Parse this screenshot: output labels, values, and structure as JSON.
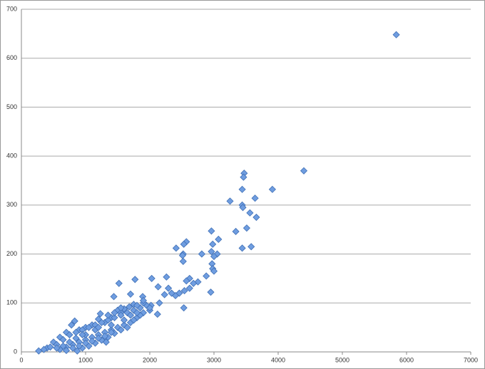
{
  "chart_data": {
    "type": "scatter",
    "color": "#6f9de0",
    "x": [
      5840,
      4400,
      3470,
      3460,
      3440,
      3910,
      3640,
      3250,
      3440,
      3450,
      3560,
      3660,
      3510,
      3340,
      3580,
      3440,
      2960,
      3070,
      2980,
      2410,
      2570,
      2530,
      2520,
      2510,
      2520,
      2810,
      2960,
      3050,
      3000,
      2970,
      2980,
      3000,
      2880,
      2750,
      2680,
      2620,
      2570,
      2540,
      2620,
      2460,
      2400,
      2340,
      2290,
      2260,
      2030,
      1770,
      1520,
      1440,
      1890,
      2130,
      2230,
      2150,
      2020,
      2000,
      2120,
      2530,
      2950,
      1700,
      1750,
      1680,
      1600,
      1500,
      1550,
      1400,
      1300,
      1230,
      1200,
      1100,
      1000,
      900,
      830,
      780,
      700,
      600,
      500,
      400,
      270,
      350,
      450,
      550,
      650,
      750,
      850,
      950,
      1050,
      1150,
      1250,
      1350,
      1450,
      1550,
      1650,
      1750,
      1850,
      1950,
      600,
      700,
      800,
      900,
      1000,
      1100,
      1200,
      1300,
      1400,
      1500,
      1600,
      1700,
      1800,
      1900,
      2000,
      870,
      950,
      1050,
      1150,
      1250,
      1350,
      1450,
      1550,
      1650,
      1750,
      1850,
      1320,
      1150,
      1000,
      1200,
      1400,
      1600,
      1700,
      1800,
      1900,
      1550,
      1450,
      1350,
      1900,
      1800,
      750,
      650,
      550,
      850,
      950,
      700,
      800,
      900,
      1000,
      1100,
      1200,
      1300,
      1400
    ],
    "y": [
      648,
      370,
      365,
      357,
      332,
      332,
      314,
      308,
      300,
      295,
      284,
      275,
      253,
      246,
      215,
      212,
      247,
      230,
      220,
      212,
      225,
      220,
      200,
      197,
      185,
      200,
      205,
      200,
      195,
      180,
      170,
      165,
      155,
      143,
      140,
      150,
      145,
      125,
      130,
      120,
      115,
      120,
      130,
      153,
      150,
      148,
      140,
      113,
      113,
      133,
      117,
      100,
      95,
      85,
      77,
      90,
      122,
      118,
      97,
      92,
      88,
      85,
      80,
      70,
      60,
      78,
      67,
      55,
      50,
      45,
      63,
      55,
      40,
      30,
      20,
      8,
      2,
      5,
      10,
      15,
      25,
      35,
      40,
      45,
      50,
      55,
      60,
      65,
      70,
      75,
      80,
      85,
      90,
      95,
      5,
      10,
      15,
      20,
      25,
      30,
      35,
      40,
      45,
      50,
      55,
      60,
      70,
      80,
      90,
      2,
      8,
      12,
      18,
      24,
      30,
      38,
      45,
      50,
      65,
      75,
      20,
      45,
      35,
      50,
      55,
      65,
      75,
      80,
      100,
      90,
      80,
      75,
      105,
      95,
      20,
      12,
      8,
      28,
      35,
      3,
      8,
      12,
      18,
      22,
      28,
      32,
      40
    ],
    "xlim": [
      0,
      7000
    ],
    "xticks": [
      0,
      1000,
      2000,
      3000,
      4000,
      5000,
      6000,
      7000
    ],
    "ylim": [
      0,
      700
    ],
    "yticks": [
      0,
      100,
      200,
      300,
      400,
      500,
      600,
      700
    ],
    "grid": true
  }
}
